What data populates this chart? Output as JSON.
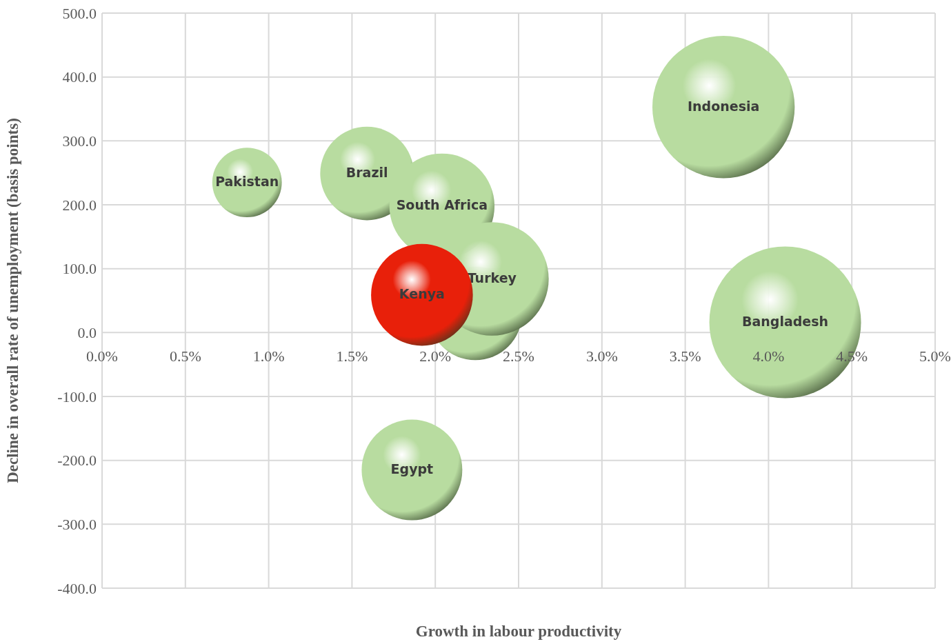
{
  "chart_data": {
    "type": "bubble",
    "xlabel": "Growth in labour productivity",
    "ylabel": "Decline in overall rate of unemployment (basis points)",
    "xlim": [
      0,
      5
    ],
    "xticks": [
      {
        "value": 0,
        "label": "0.0%"
      },
      {
        "value": 0.5,
        "label": "0.5%"
      },
      {
        "value": 1,
        "label": "1.0%"
      },
      {
        "value": 1.5,
        "label": "1.5%"
      },
      {
        "value": 2,
        "label": "2.0%"
      },
      {
        "value": 2.5,
        "label": "2.5%"
      },
      {
        "value": 3,
        "label": "3.0%"
      },
      {
        "value": 3.5,
        "label": "3.5%"
      },
      {
        "value": 4,
        "label": "4.0%"
      },
      {
        "value": 4.5,
        "label": "4.5%"
      },
      {
        "value": 5,
        "label": "5.0%"
      }
    ],
    "ylim": [
      -400,
      500
    ],
    "yticks": [
      {
        "value": -400,
        "label": "-400.0"
      },
      {
        "value": -300,
        "label": "-300.0"
      },
      {
        "value": -200,
        "label": "-200.0"
      },
      {
        "value": -100,
        "label": "-100.0"
      },
      {
        "value": 0,
        "label": "0.0"
      },
      {
        "value": 100,
        "label": "100.0"
      },
      {
        "value": 200,
        "label": "200.0"
      },
      {
        "value": 300,
        "label": "300.0"
      },
      {
        "value": 400,
        "label": "400.0"
      },
      {
        "value": 500,
        "label": "500.0"
      }
    ],
    "grid": true,
    "legend": false,
    "series": [
      {
        "name": "Pakistan",
        "color": "#b8dca0",
        "x": [
          0.87
        ],
        "values": [
          235
        ],
        "sizes": [
          0.21
        ]
      },
      {
        "name": "Brazil",
        "color": "#b8dca0",
        "x": [
          1.59
        ],
        "values": [
          249
        ],
        "sizes": [
          0.38
        ]
      },
      {
        "name": "South Africa",
        "color": "#b8dca0",
        "x": [
          2.04
        ],
        "values": [
          198
        ],
        "sizes": [
          0.48
        ]
      },
      {
        "color": "#b8dca0",
        "x": [
          2.24
        ],
        "values": [
          30
        ],
        "sizes": [
          0.38
        ]
      },
      {
        "name": "Turkey",
        "color": "#b8dca0",
        "x": [
          2.34
        ],
        "values": [
          84
        ],
        "sizes": [
          0.56
        ]
      },
      {
        "name": "Kenya",
        "color": "#e8200a",
        "x": [
          1.92
        ],
        "values": [
          59
        ],
        "sizes": [
          0.45
        ]
      },
      {
        "name": "Indonesia",
        "color": "#b8dca0",
        "x": [
          3.73
        ],
        "values": [
          353
        ],
        "sizes": [
          0.88
        ]
      },
      {
        "name": "Bangladesh",
        "color": "#b8dca0",
        "x": [
          4.1
        ],
        "values": [
          16
        ],
        "sizes": [
          1
        ]
      },
      {
        "name": "Egypt",
        "color": "#b8dca0",
        "x": [
          1.86
        ],
        "values": [
          -215
        ],
        "sizes": [
          0.44
        ]
      }
    ]
  }
}
